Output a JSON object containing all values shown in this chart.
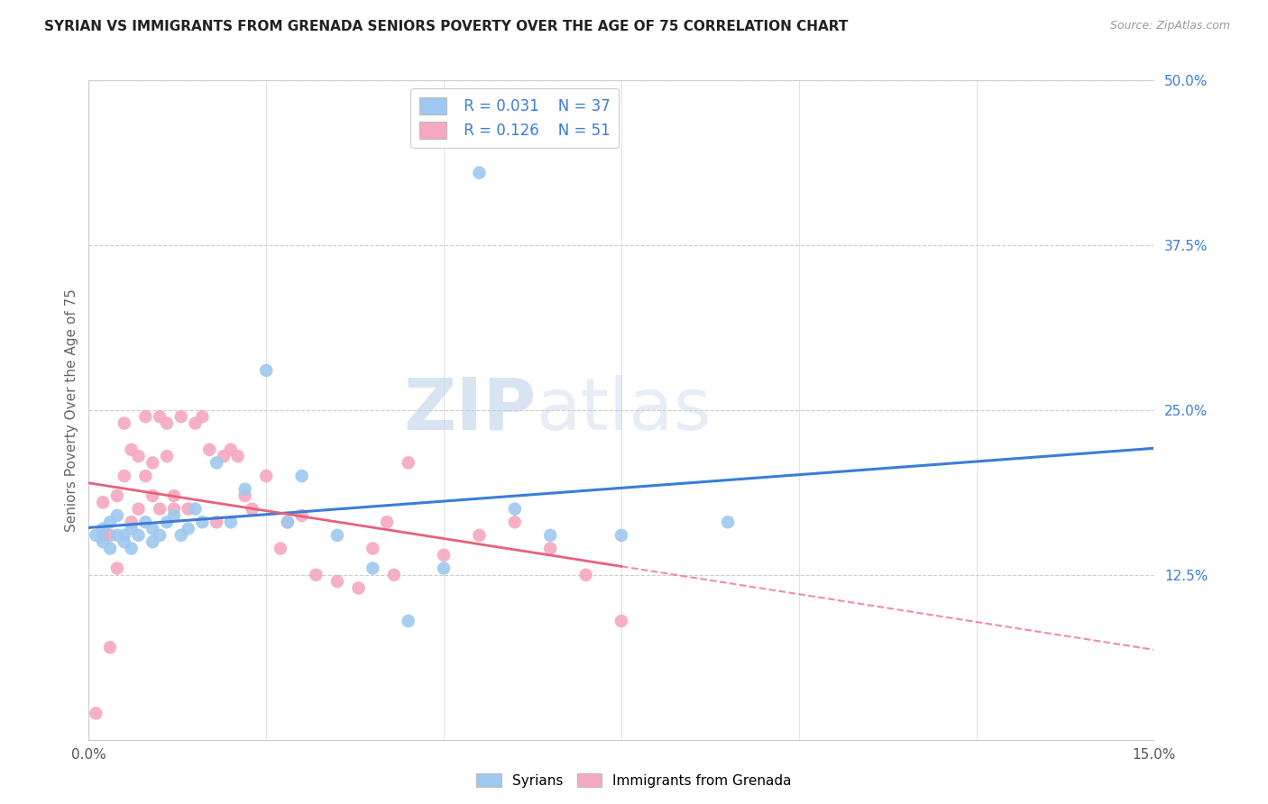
{
  "title": "SYRIAN VS IMMIGRANTS FROM GRENADA SENIORS POVERTY OVER THE AGE OF 75 CORRELATION CHART",
  "source": "Source: ZipAtlas.com",
  "ylabel": "Seniors Poverty Over the Age of 75",
  "xlabel_syrians": "Syrians",
  "xlabel_grenada": "Immigrants from Grenada",
  "xmin": 0.0,
  "xmax": 0.15,
  "ymin": 0.0,
  "ymax": 0.5,
  "xticks": [
    0.0,
    0.025,
    0.05,
    0.075,
    0.1,
    0.125,
    0.15
  ],
  "ytick_labels_right": [
    "50.0%",
    "37.5%",
    "25.0%",
    "12.5%"
  ],
  "yticks_right": [
    0.5,
    0.375,
    0.25,
    0.125
  ],
  "legend_r1": "R = 0.031",
  "legend_n1": "N = 37",
  "legend_r2": "R = 0.126",
  "legend_n2": "N = 51",
  "blue_color": "#9EC8F0",
  "pink_color": "#F5A8C0",
  "blue_line_color": "#3B7DD8",
  "pink_line_color": "#E8607A",
  "watermark": "ZIPatlas",
  "syrians_x": [
    0.001,
    0.002,
    0.002,
    0.003,
    0.003,
    0.004,
    0.004,
    0.005,
    0.005,
    0.006,
    0.006,
    0.007,
    0.008,
    0.009,
    0.009,
    0.01,
    0.011,
    0.012,
    0.013,
    0.014,
    0.015,
    0.016,
    0.018,
    0.02,
    0.022,
    0.025,
    0.028,
    0.03,
    0.035,
    0.04,
    0.045,
    0.05,
    0.055,
    0.06,
    0.065,
    0.075,
    0.09
  ],
  "syrians_y": [
    0.155,
    0.15,
    0.16,
    0.145,
    0.165,
    0.155,
    0.17,
    0.15,
    0.155,
    0.16,
    0.145,
    0.155,
    0.165,
    0.15,
    0.16,
    0.155,
    0.165,
    0.17,
    0.155,
    0.16,
    0.175,
    0.165,
    0.21,
    0.165,
    0.19,
    0.28,
    0.165,
    0.2,
    0.155,
    0.13,
    0.09,
    0.13,
    0.43,
    0.175,
    0.155,
    0.155,
    0.165
  ],
  "grenada_x": [
    0.001,
    0.002,
    0.002,
    0.003,
    0.003,
    0.004,
    0.004,
    0.005,
    0.005,
    0.006,
    0.006,
    0.007,
    0.007,
    0.008,
    0.008,
    0.009,
    0.009,
    0.01,
    0.01,
    0.011,
    0.011,
    0.012,
    0.012,
    0.013,
    0.014,
    0.015,
    0.016,
    0.017,
    0.018,
    0.019,
    0.02,
    0.021,
    0.022,
    0.023,
    0.025,
    0.027,
    0.028,
    0.03,
    0.032,
    0.035,
    0.038,
    0.04,
    0.042,
    0.043,
    0.045,
    0.05,
    0.055,
    0.06,
    0.065,
    0.07,
    0.075
  ],
  "grenada_y": [
    0.02,
    0.155,
    0.18,
    0.07,
    0.155,
    0.13,
    0.185,
    0.2,
    0.24,
    0.165,
    0.22,
    0.175,
    0.215,
    0.245,
    0.2,
    0.21,
    0.185,
    0.245,
    0.175,
    0.215,
    0.24,
    0.185,
    0.175,
    0.245,
    0.175,
    0.24,
    0.245,
    0.22,
    0.165,
    0.215,
    0.22,
    0.215,
    0.185,
    0.175,
    0.2,
    0.145,
    0.165,
    0.17,
    0.125,
    0.12,
    0.115,
    0.145,
    0.165,
    0.125,
    0.21,
    0.14,
    0.155,
    0.165,
    0.145,
    0.125,
    0.09
  ]
}
